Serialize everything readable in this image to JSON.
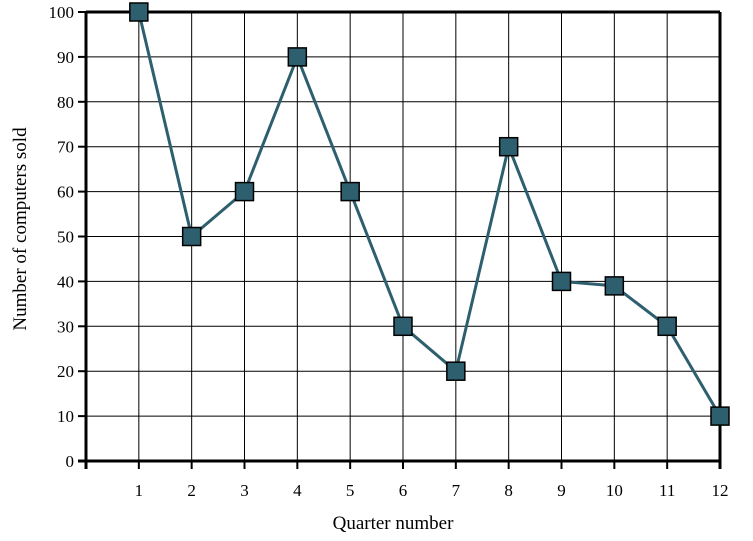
{
  "chart_data": {
    "type": "line",
    "title": "",
    "xlabel": "Quarter number",
    "ylabel": "Number of computers sold",
    "xlim": [
      0,
      12
    ],
    "ylim": [
      0,
      100
    ],
    "x_ticks": [
      1,
      2,
      3,
      4,
      5,
      6,
      7,
      8,
      9,
      10,
      11,
      12
    ],
    "y_ticks": [
      0,
      10,
      20,
      30,
      40,
      50,
      60,
      70,
      80,
      90,
      100
    ],
    "grid": true,
    "legend": "none",
    "series": [
      {
        "x": [
          1,
          2,
          3,
          4,
          5,
          6,
          7,
          8,
          9,
          10,
          11,
          12
        ],
        "values": [
          100,
          50,
          60,
          90,
          60,
          30,
          20,
          70,
          40,
          39,
          30,
          10
        ],
        "line_color": "#2e5f6e",
        "marker": "square",
        "marker_color": "#2e5f6e"
      }
    ]
  }
}
